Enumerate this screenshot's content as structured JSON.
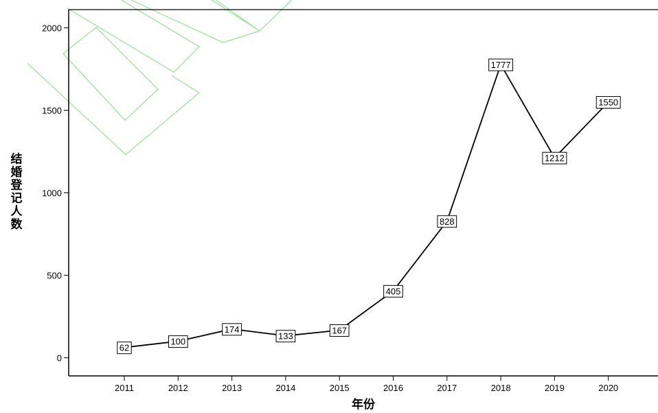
{
  "chart_data": {
    "type": "line",
    "title": "",
    "xlabel": "年份",
    "ylabel": "结婚登记人数",
    "categories": [
      "2011",
      "2012",
      "2013",
      "2014",
      "2015",
      "2016",
      "2017",
      "2018",
      "2019",
      "2020"
    ],
    "series": [
      {
        "values": [
          62,
          100,
          174,
          133,
          167,
          405,
          828,
          1777,
          1212,
          1550
        ]
      }
    ],
    "ylim": [
      -110,
      2110
    ],
    "yticks": [
      0,
      500,
      1000,
      1500,
      2000
    ],
    "data_labels": true,
    "grid": false,
    "legend": "none",
    "colors": {
      "line": "#000000",
      "axis": "#000000",
      "watermark": "#66cc66"
    }
  }
}
